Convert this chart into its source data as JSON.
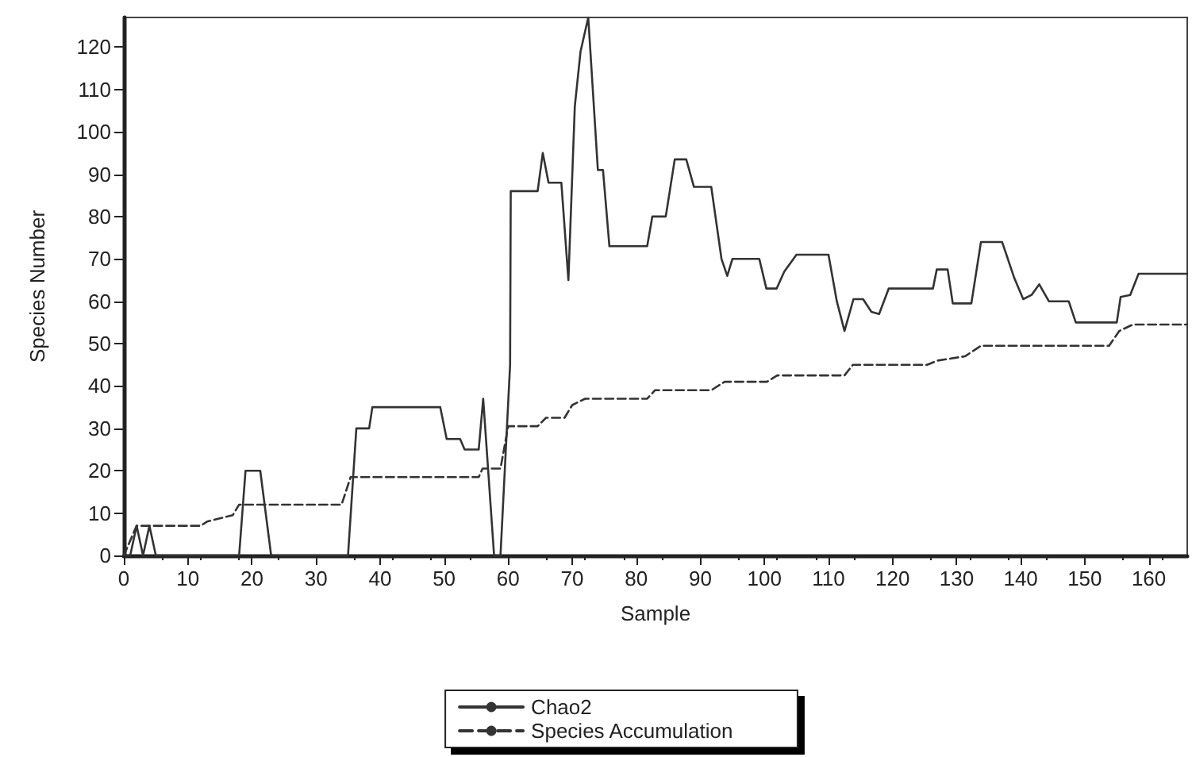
{
  "chart_data": {
    "type": "line",
    "xlabel": "Sample",
    "ylabel": "Species Number",
    "xlim": [
      0,
      166
    ],
    "ylim": [
      0,
      127
    ],
    "xticks": [
      0,
      10,
      20,
      30,
      40,
      50,
      60,
      70,
      80,
      90,
      100,
      110,
      120,
      130,
      140,
      150,
      160
    ],
    "yticks": [
      0,
      10,
      20,
      30,
      40,
      50,
      60,
      70,
      80,
      90,
      100,
      110,
      120
    ],
    "grid": false,
    "legend": "bottom",
    "marker": "none",
    "series": [
      {
        "name": "Chao2",
        "color": "#333333",
        "line_style": "solid",
        "x": [
          0,
          1,
          2,
          3,
          4,
          5,
          18,
          19,
          21.3,
          23,
          35,
          36.3,
          38.3,
          38.8,
          49.4,
          50.4,
          52.5,
          53.2,
          55.4,
          56.1,
          57.8,
          58.8,
          60.3,
          60.4,
          64.6,
          65.4,
          66.3,
          68.3,
          69.4,
          70.4,
          71.3,
          72.5,
          74,
          74.8,
          75.8,
          81.7,
          82.5,
          84.6,
          86,
          87.8,
          89,
          91.7,
          93.3,
          94.2,
          95,
          99.2,
          100.3,
          101.9,
          103.1,
          105,
          110,
          111.3,
          112.5,
          113.9,
          115.4,
          116.7,
          117.9,
          119.4,
          126.3,
          126.9,
          128.6,
          129.4,
          132.3,
          133.8,
          137.1,
          139,
          140.4,
          141.7,
          142.9,
          144.4,
          147.5,
          148.6,
          155,
          155.6,
          157.1,
          158.4,
          166
        ],
        "values": [
          0,
          0,
          7,
          0,
          7,
          0,
          0,
          20,
          20,
          0,
          0,
          30,
          30,
          35,
          35,
          27.5,
          27.5,
          25,
          25,
          37,
          0,
          0,
          45,
          86,
          86,
          95,
          88,
          88,
          65,
          106,
          119,
          127,
          91,
          91,
          73,
          73,
          80,
          80,
          93.5,
          93.5,
          87,
          87,
          70,
          66,
          70,
          70,
          63,
          63,
          67,
          71,
          71,
          60,
          53,
          60.5,
          60.5,
          57.5,
          57,
          63,
          63,
          67.5,
          67.5,
          59.5,
          59.5,
          74,
          74,
          65.5,
          60.5,
          61.5,
          64,
          60,
          60,
          55,
          55,
          61,
          61.5,
          66.5,
          66.5
        ]
      },
      {
        "name": "Species Accumulation",
        "color": "#333333",
        "line_style": "dashed",
        "x": [
          0,
          2,
          12,
          13,
          17,
          18,
          34,
          35.4,
          55.4,
          56,
          58.8,
          60,
          64.6,
          65.9,
          68.8,
          70,
          72,
          81.7,
          82.9,
          91.7,
          93.8,
          100.4,
          102,
          112.5,
          113.8,
          125.4,
          127,
          131.3,
          133.8,
          138.2,
          153.8,
          155.4,
          157.5,
          166
        ],
        "values": [
          0,
          7,
          7,
          8,
          9.5,
          12,
          12,
          18.5,
          18.5,
          20.5,
          20.5,
          30.5,
          30.5,
          32.5,
          32.5,
          35.5,
          37,
          37,
          39,
          39,
          41,
          41,
          42.5,
          42.5,
          45,
          45,
          46,
          47,
          49.5,
          49.5,
          49.5,
          53,
          54.5,
          54.5
        ]
      }
    ]
  }
}
